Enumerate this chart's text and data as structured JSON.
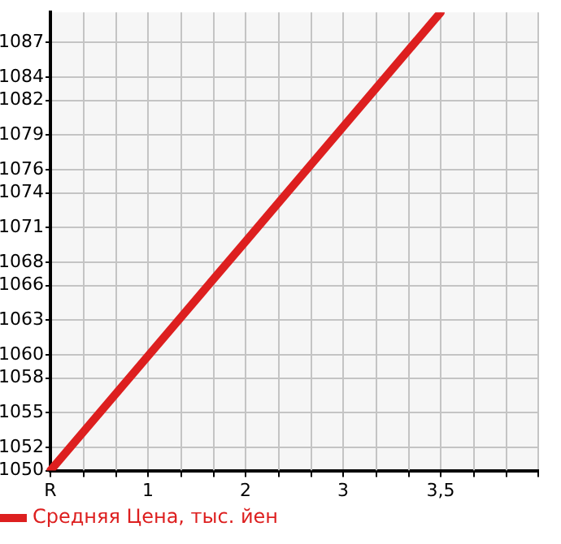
{
  "chart_data": {
    "type": "line",
    "categories": [
      "R",
      "1",
      "2",
      "3",
      "3,5",
      null
    ],
    "series": [
      {
        "name": "Средняя Цена, тыс. йен",
        "color": "#dd1f1f",
        "values": [
          1050,
          1059.9,
          1069.8,
          1079.7,
          1089.6,
          null
        ]
      }
    ],
    "ylim": [
      1050,
      1089.6
    ],
    "yticks": [
      1050,
      1052,
      1055,
      1058,
      1060,
      1063,
      1066,
      1068,
      1071,
      1074,
      1076,
      1079,
      1082,
      1084,
      1087
    ],
    "grid": true,
    "legend": "bottom left",
    "marker": "none",
    "line_style": "solid"
  }
}
